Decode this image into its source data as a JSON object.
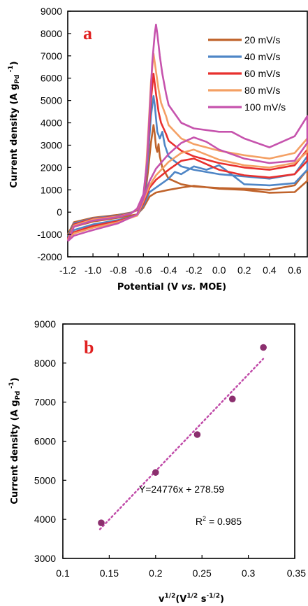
{
  "colors": {
    "c20": "#c0632b",
    "c40": "#4f86c6",
    "c60": "#e8302e",
    "c80": "#f4a064",
    "c100": "#c653ad",
    "label_red": "#e02020",
    "marker": "#8b2f6e",
    "trend": "#c04aa8"
  },
  "chart_data": [
    {
      "panel": "a",
      "type": "line",
      "panel_label": "a",
      "xlabel": {
        "pre": "Potential (V ",
        "italic": "vs.",
        "post": " MOE)"
      },
      "ylabel": {
        "main": "Current density (A g",
        "sub": "Pd",
        "sup": " -1",
        "close": ")"
      },
      "xlim": [
        -1.2,
        0.7
      ],
      "ylim": [
        -2000,
        9000
      ],
      "xticks": [
        -1.2,
        -1.0,
        -0.8,
        -0.6,
        -0.4,
        -0.2,
        0.0,
        0.2,
        0.4,
        0.6
      ],
      "xtick_labels": [
        "-1.2",
        "-1.0",
        "-0.8",
        "-0.6",
        "-0.4",
        "-0.2",
        "0.0",
        "0.2",
        "0.4",
        "0.6"
      ],
      "yticks": [
        -2000,
        -1000,
        0,
        1000,
        2000,
        3000,
        4000,
        5000,
        6000,
        7000,
        8000,
        9000
      ],
      "ytick_labels": [
        "-2000",
        "-1000",
        "0",
        "1000",
        "2000",
        "3000",
        "4000",
        "5000",
        "6000",
        "7000",
        "8000",
        "9000"
      ],
      "legend_position": "top-right",
      "series": [
        {
          "name": "20 mV/s",
          "color_key": "c20",
          "peak": 3900,
          "bwd_peak": 1200,
          "end_fwd": 1000,
          "end_top": 1900,
          "start": -1000,
          "forward": [
            [
              -1.2,
              -1000
            ],
            [
              -1.15,
              -450
            ],
            [
              -1.0,
              -250
            ],
            [
              -0.8,
              -120
            ],
            [
              -0.7,
              -20
            ],
            [
              -0.65,
              80
            ],
            [
              -0.6,
              400
            ],
            [
              -0.58,
              1000
            ],
            [
              -0.56,
              2000
            ],
            [
              -0.54,
              3100
            ],
            [
              -0.52,
              3900
            ],
            [
              -0.51,
              3500
            ],
            [
              -0.5,
              2900
            ],
            [
              -0.49,
              2700
            ],
            [
              -0.48,
              3050
            ],
            [
              -0.47,
              2500
            ],
            [
              -0.45,
              2000
            ],
            [
              -0.4,
              1500
            ],
            [
              -0.3,
              1250
            ],
            [
              -0.2,
              1150
            ],
            [
              0.0,
              1080
            ],
            [
              0.2,
              1050
            ],
            [
              0.4,
              1000
            ],
            [
              0.6,
              1200
            ],
            [
              0.7,
              1900
            ]
          ],
          "backward": [
            [
              0.7,
              1400
            ],
            [
              0.6,
              900
            ],
            [
              0.4,
              870
            ],
            [
              0.2,
              1000
            ],
            [
              0.0,
              1050
            ],
            [
              -0.2,
              1180
            ],
            [
              -0.3,
              1100
            ],
            [
              -0.4,
              1000
            ],
            [
              -0.5,
              880
            ],
            [
              -0.55,
              700
            ],
            [
              -0.6,
              200
            ],
            [
              -0.65,
              -100
            ],
            [
              -0.8,
              -250
            ],
            [
              -1.0,
              -420
            ],
            [
              -1.15,
              -650
            ],
            [
              -1.2,
              -1000
            ]
          ]
        },
        {
          "name": "40 mV/s",
          "color_key": "c40",
          "peak": 5200,
          "bwd_peak": 2000,
          "end_fwd": 1500,
          "end_top": 2500,
          "start": -1100,
          "forward": [
            [
              -1.2,
              -1100
            ],
            [
              -1.15,
              -500
            ],
            [
              -1.0,
              -280
            ],
            [
              -0.8,
              -150
            ],
            [
              -0.7,
              -30
            ],
            [
              -0.65,
              100
            ],
            [
              -0.6,
              500
            ],
            [
              -0.58,
              1300
            ],
            [
              -0.56,
              2700
            ],
            [
              -0.54,
              4300
            ],
            [
              -0.52,
              5200
            ],
            [
              -0.51,
              4800
            ],
            [
              -0.5,
              4200
            ],
            [
              -0.49,
              3600
            ],
            [
              -0.47,
              3300
            ],
            [
              -0.45,
              3600
            ],
            [
              -0.43,
              3000
            ],
            [
              -0.4,
              2500
            ],
            [
              -0.3,
              2050
            ],
            [
              -0.2,
              1900
            ],
            [
              0.0,
              1700
            ],
            [
              0.2,
              1600
            ],
            [
              0.4,
              1500
            ],
            [
              0.6,
              1700
            ],
            [
              0.7,
              2500
            ]
          ],
          "backward": [
            [
              0.7,
              1900
            ],
            [
              0.6,
              1300
            ],
            [
              0.4,
              1200
            ],
            [
              0.2,
              1250
            ],
            [
              0.05,
              1900
            ],
            [
              0.0,
              2100
            ],
            [
              -0.1,
              1900
            ],
            [
              -0.2,
              2050
            ],
            [
              -0.3,
              1700
            ],
            [
              -0.35,
              1800
            ],
            [
              -0.4,
              1500
            ],
            [
              -0.5,
              1100
            ],
            [
              -0.55,
              900
            ],
            [
              -0.6,
              300
            ],
            [
              -0.65,
              -150
            ],
            [
              -0.8,
              -350
            ],
            [
              -1.0,
              -550
            ],
            [
              -1.15,
              -800
            ],
            [
              -1.2,
              -1100
            ]
          ]
        },
        {
          "name": "60 mV/s",
          "color_key": "c60",
          "peak": 6200,
          "bwd_peak": 2400,
          "end_fwd": 1900,
          "end_top": 2800,
          "start": -1200,
          "forward": [
            [
              -1.2,
              -1200
            ],
            [
              -1.15,
              -550
            ],
            [
              -1.0,
              -300
            ],
            [
              -0.8,
              -180
            ],
            [
              -0.7,
              -50
            ],
            [
              -0.65,
              120
            ],
            [
              -0.6,
              600
            ],
            [
              -0.58,
              1600
            ],
            [
              -0.56,
              3200
            ],
            [
              -0.54,
              5000
            ],
            [
              -0.52,
              6200
            ],
            [
              -0.5,
              5300
            ],
            [
              -0.48,
              4500
            ],
            [
              -0.46,
              4000
            ],
            [
              -0.42,
              3500
            ],
            [
              -0.4,
              3200
            ],
            [
              -0.3,
              2750
            ],
            [
              -0.2,
              2500
            ],
            [
              0.0,
              2200
            ],
            [
              0.2,
              2000
            ],
            [
              0.4,
              1900
            ],
            [
              0.6,
              2100
            ],
            [
              0.7,
              2800
            ]
          ],
          "backward": [
            [
              0.7,
              2300
            ],
            [
              0.6,
              1700
            ],
            [
              0.4,
              1550
            ],
            [
              0.2,
              1650
            ],
            [
              0.0,
              1900
            ],
            [
              -0.2,
              2400
            ],
            [
              -0.3,
              2300
            ],
            [
              -0.4,
              1900
            ],
            [
              -0.5,
              1450
            ],
            [
              -0.55,
              1100
            ],
            [
              -0.6,
              400
            ],
            [
              -0.65,
              -150
            ],
            [
              -0.8,
              -400
            ],
            [
              -1.0,
              -620
            ],
            [
              -1.15,
              -900
            ],
            [
              -1.2,
              -1200
            ]
          ]
        },
        {
          "name": "80 mV/s",
          "color_key": "c80",
          "peak": 7100,
          "bwd_peak": 2800,
          "end_fwd": 2400,
          "end_top": 3300,
          "start": -1250,
          "forward": [
            [
              -1.2,
              -1250
            ],
            [
              -1.15,
              -600
            ],
            [
              -1.0,
              -330
            ],
            [
              -0.8,
              -200
            ],
            [
              -0.7,
              -60
            ],
            [
              -0.65,
              140
            ],
            [
              -0.6,
              700
            ],
            [
              -0.58,
              1800
            ],
            [
              -0.56,
              3700
            ],
            [
              -0.54,
              5800
            ],
            [
              -0.52,
              7100
            ],
            [
              -0.5,
              6300
            ],
            [
              -0.48,
              5500
            ],
            [
              -0.46,
              4900
            ],
            [
              -0.42,
              4300
            ],
            [
              -0.4,
              3900
            ],
            [
              -0.3,
              3300
            ],
            [
              -0.2,
              3050
            ],
            [
              0.0,
              2750
            ],
            [
              0.2,
              2550
            ],
            [
              0.4,
              2400
            ],
            [
              0.6,
              2650
            ],
            [
              0.7,
              3300
            ]
          ],
          "backward": [
            [
              0.7,
              2700
            ],
            [
              0.6,
              2200
            ],
            [
              0.4,
              2000
            ],
            [
              0.2,
              2100
            ],
            [
              0.0,
              2350
            ],
            [
              -0.2,
              2800
            ],
            [
              -0.3,
              2650
            ],
            [
              -0.4,
              2250
            ],
            [
              -0.5,
              1650
            ],
            [
              -0.55,
              1200
            ],
            [
              -0.6,
              500
            ],
            [
              -0.65,
              -150
            ],
            [
              -0.8,
              -450
            ],
            [
              -1.0,
              -700
            ],
            [
              -1.15,
              -950
            ],
            [
              -1.2,
              -1250
            ]
          ]
        },
        {
          "name": "100 mV/s",
          "color_key": "c100",
          "peak": 8400,
          "bwd_peak": 3350,
          "end_fwd": 2900,
          "end_top": 4300,
          "start": -1300,
          "forward": [
            [
              -1.2,
              -1300
            ],
            [
              -1.15,
              -650
            ],
            [
              -1.0,
              -380
            ],
            [
              -0.8,
              -220
            ],
            [
              -0.7,
              -70
            ],
            [
              -0.65,
              160
            ],
            [
              -0.6,
              800
            ],
            [
              -0.57,
              2300
            ],
            [
              -0.55,
              4500
            ],
            [
              -0.53,
              6700
            ],
            [
              -0.51,
              8000
            ],
            [
              -0.5,
              8400
            ],
            [
              -0.49,
              8000
            ],
            [
              -0.47,
              7000
            ],
            [
              -0.45,
              6200
            ],
            [
              -0.42,
              5300
            ],
            [
              -0.4,
              4800
            ],
            [
              -0.3,
              4000
            ],
            [
              -0.2,
              3750
            ],
            [
              0.0,
              3600
            ],
            [
              0.1,
              3600
            ],
            [
              0.2,
              3300
            ],
            [
              0.4,
              2900
            ],
            [
              0.6,
              3400
            ],
            [
              0.7,
              4300
            ]
          ],
          "backward": [
            [
              0.7,
              3100
            ],
            [
              0.6,
              2300
            ],
            [
              0.4,
              2200
            ],
            [
              0.2,
              2400
            ],
            [
              0.0,
              2800
            ],
            [
              -0.1,
              3150
            ],
            [
              -0.2,
              3350
            ],
            [
              -0.3,
              3100
            ],
            [
              -0.4,
              2600
            ],
            [
              -0.5,
              1950
            ],
            [
              -0.55,
              1400
            ],
            [
              -0.6,
              600
            ],
            [
              -0.65,
              -100
            ],
            [
              -0.8,
              -500
            ],
            [
              -1.0,
              -800
            ],
            [
              -1.15,
              -1050
            ],
            [
              -1.2,
              -1300
            ]
          ]
        }
      ]
    },
    {
      "panel": "b",
      "type": "scatter",
      "panel_label": "b",
      "xlabel": {
        "v": "v",
        "s1": "1/2",
        "mid": "(V",
        "s2": "1/2",
        "s3": " s",
        "s4": "-1/2",
        "close": ")"
      },
      "ylabel": {
        "main": "Current density (A g",
        "sub": "Pd",
        "sup": " -1",
        "close": ")"
      },
      "xlim": [
        0.1,
        0.35
      ],
      "ylim": [
        3000,
        9000
      ],
      "xticks": [
        0.1,
        0.15,
        0.2,
        0.25,
        0.3,
        0.35
      ],
      "xtick_labels": [
        "0.1",
        "0.15",
        "0.2",
        "0.25",
        "0.3",
        "0.35"
      ],
      "yticks": [
        3000,
        4000,
        5000,
        6000,
        7000,
        8000,
        9000
      ],
      "ytick_labels": [
        "3000",
        "4000",
        "5000",
        "6000",
        "7000",
        "8000",
        "9000"
      ],
      "points": [
        {
          "x": 0.1414,
          "y": 3910
        },
        {
          "x": 0.2,
          "y": 5200
        },
        {
          "x": 0.2449,
          "y": 6170
        },
        {
          "x": 0.2828,
          "y": 7080
        },
        {
          "x": 0.3162,
          "y": 8400
        }
      ],
      "trendline": {
        "slope": 24776,
        "intercept": 278.59,
        "x_range": [
          0.14,
          0.316
        ],
        "style": "dotted"
      },
      "equation": "Y=24776x + 278.59",
      "r2": {
        "pre": "R",
        "sup": "2",
        "post": " = 0.985"
      }
    }
  ]
}
